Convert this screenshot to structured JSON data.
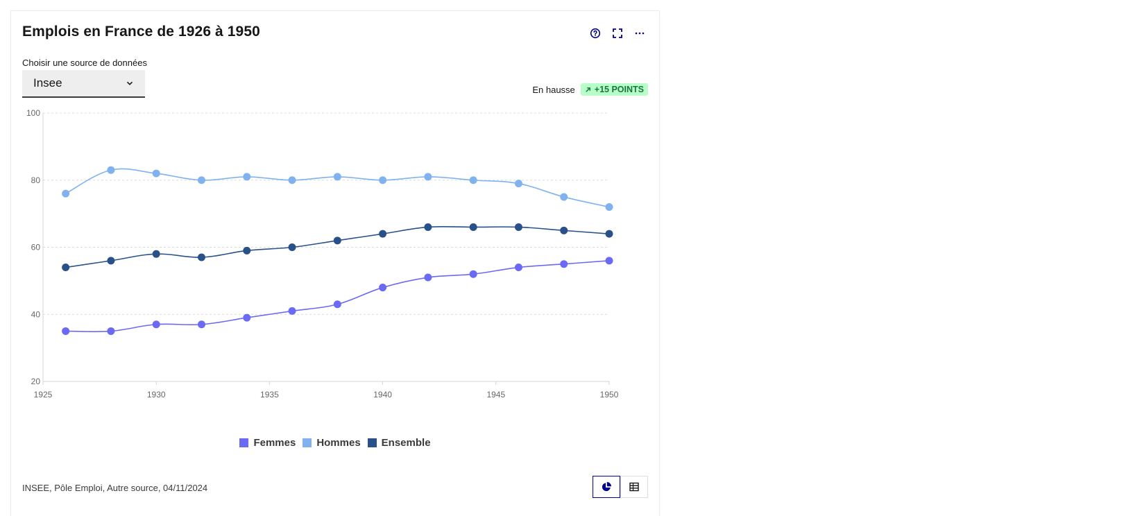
{
  "card": {
    "title": "Emplois en France de 1926 à 1950",
    "actions": [
      "help-icon",
      "fullscreen-icon",
      "more-icon"
    ]
  },
  "selector": {
    "label": "Choisir une source de données",
    "value": "Insee"
  },
  "trend": {
    "label": "En hausse",
    "badge": "+15 POINTS",
    "badge_icon": "arrow-up-right-icon"
  },
  "source": "INSEE, Pôle Emploi, Autre source, 04/11/2024",
  "colors": {
    "accent": "#000091",
    "femmes": "#6a6af4",
    "hommes": "#7fb2ef",
    "ensemble": "#28518a"
  },
  "chart_data": {
    "type": "line",
    "title": "Emplois en France de 1926 à 1950",
    "xlim": [
      1925,
      1950
    ],
    "ylim": [
      20,
      100
    ],
    "x_ticks": [
      1925,
      1930,
      1935,
      1940,
      1945,
      1950
    ],
    "y_ticks": [
      20,
      40,
      60,
      80,
      100
    ],
    "grid": true,
    "legend": "bottom-center",
    "x": [
      1926,
      1928,
      1930,
      1932,
      1934,
      1936,
      1938,
      1940,
      1942,
      1944,
      1946,
      1948,
      1950
    ],
    "series": [
      {
        "name": "Femmes",
        "color": "#6a6af4",
        "values": [
          35,
          35,
          37,
          37,
          39,
          41,
          43,
          48,
          51,
          52,
          54,
          55,
          56
        ]
      },
      {
        "name": "Hommes",
        "color": "#7fb2ef",
        "values": [
          76,
          83,
          82,
          80,
          81,
          80,
          81,
          80,
          81,
          80,
          79,
          75,
          72
        ]
      },
      {
        "name": "Ensemble",
        "color": "#28518a",
        "values": [
          54,
          56,
          58,
          57,
          59,
          60,
          62,
          64,
          66,
          66,
          66,
          65,
          64
        ]
      }
    ]
  },
  "view_toggle": {
    "chart_icon": "pie-chart-icon",
    "table_icon": "table-icon"
  }
}
